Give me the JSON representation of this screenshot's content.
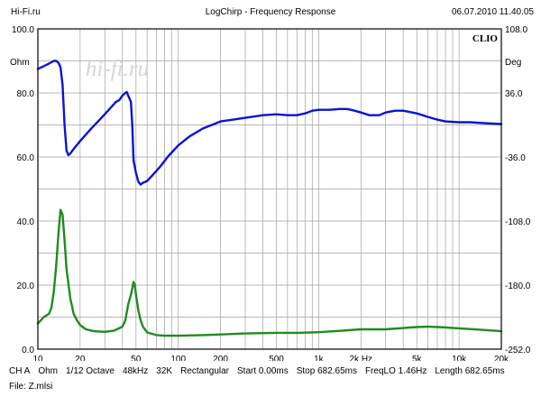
{
  "header": {
    "left": "Hi-Fi.ru",
    "title": "LogChirp - Frequency Response",
    "right": "06.07.2010 11.40.05"
  },
  "chart": {
    "brand": "CLIO",
    "watermark": "hi-fi.ru",
    "left_unit": "Ohm",
    "right_unit": "Deg"
  },
  "footer": {
    "channel": "CH A",
    "unit": "Ohm",
    "octave": "1/12 Octave",
    "rate": "48kHz",
    "size": "32K",
    "window": "Rectangular",
    "start": "Start 0.00ms",
    "stop": "Stop 682.65ms",
    "freqlo": "FreqLO 1.46Hz",
    "length": "Length 682.65ms",
    "file": "File: Z.mlsi"
  },
  "colors": {
    "impedance": "#0a14d2",
    "phase": "#1e8c1e",
    "grid": "#a0a0a0"
  },
  "chart_data": {
    "type": "line",
    "x_scale": "log",
    "xlim": [
      10,
      20000
    ],
    "ylim": [
      0,
      100
    ],
    "y2lim": [
      -252,
      108
    ],
    "x_ticks": [
      {
        "v": 10,
        "l": "10"
      },
      {
        "v": 20,
        "l": "20"
      },
      {
        "v": 50,
        "l": "50"
      },
      {
        "v": 100,
        "l": "100"
      },
      {
        "v": 200,
        "l": "200"
      },
      {
        "v": 500,
        "l": "500"
      },
      {
        "v": 1000,
        "l": "1k"
      },
      {
        "v": 2000,
        "l": "2k Hz"
      },
      {
        "v": 5000,
        "l": "5k"
      },
      {
        "v": 10000,
        "l": "10k"
      },
      {
        "v": 20000,
        "l": "20k"
      }
    ],
    "y_ticks": [
      {
        "v": 0,
        "l": "0.0"
      },
      {
        "v": 20,
        "l": "20.0"
      },
      {
        "v": 40,
        "l": "40.0"
      },
      {
        "v": 60,
        "l": "60.0"
      },
      {
        "v": 80,
        "l": "80.0"
      },
      {
        "v": 100,
        "l": "100.0"
      }
    ],
    "y2_ticks": [
      {
        "v": -252,
        "l": "-252.0"
      },
      {
        "v": -180,
        "l": "-180.0"
      },
      {
        "v": -108,
        "l": "-108.0"
      },
      {
        "v": -36,
        "l": "-36.0"
      },
      {
        "v": 36,
        "l": "36.0"
      },
      {
        "v": 108,
        "l": "108.0"
      }
    ],
    "grid": true,
    "series": [
      {
        "axis": "right",
        "color": "#0a14d2",
        "points": [
          [
            10,
            63
          ],
          [
            11,
            66
          ],
          [
            12,
            69
          ],
          [
            13,
            72
          ],
          [
            13.5,
            72
          ],
          [
            14,
            70
          ],
          [
            14.5,
            65
          ],
          [
            15,
            45
          ],
          [
            15.5,
            0
          ],
          [
            16,
            -29
          ],
          [
            16.5,
            -34
          ],
          [
            17,
            -32
          ],
          [
            18,
            -27
          ],
          [
            20,
            -18
          ],
          [
            24,
            -4
          ],
          [
            28,
            7
          ],
          [
            32,
            17
          ],
          [
            36,
            26
          ],
          [
            38,
            28
          ],
          [
            40,
            33
          ],
          [
            42,
            36
          ],
          [
            43,
            37
          ],
          [
            44,
            33
          ],
          [
            46,
            26
          ],
          [
            47,
            0
          ],
          [
            48,
            -40
          ],
          [
            50,
            -54
          ],
          [
            52,
            -64
          ],
          [
            54,
            -67
          ],
          [
            56,
            -65
          ],
          [
            60,
            -63
          ],
          [
            66,
            -56
          ],
          [
            75,
            -46
          ],
          [
            85,
            -35
          ],
          [
            100,
            -23
          ],
          [
            120,
            -13
          ],
          [
            150,
            -4
          ],
          [
            200,
            4
          ],
          [
            300,
            8
          ],
          [
            400,
            11
          ],
          [
            500,
            12
          ],
          [
            600,
            11
          ],
          [
            700,
            11
          ],
          [
            800,
            13
          ],
          [
            900,
            16
          ],
          [
            1000,
            17
          ],
          [
            1200,
            17
          ],
          [
            1400,
            18
          ],
          [
            1600,
            18
          ],
          [
            1800,
            16
          ],
          [
            2000,
            14
          ],
          [
            2300,
            11
          ],
          [
            2700,
            11
          ],
          [
            3000,
            14
          ],
          [
            3500,
            16
          ],
          [
            4000,
            16
          ],
          [
            5000,
            13
          ],
          [
            6000,
            9
          ],
          [
            7000,
            6
          ],
          [
            8000,
            4
          ],
          [
            10000,
            3
          ],
          [
            12000,
            3
          ],
          [
            15000,
            2
          ],
          [
            20000,
            1
          ]
        ]
      },
      {
        "axis": "left",
        "color": "#1e8c1e",
        "points": [
          [
            10,
            8
          ],
          [
            10.5,
            9
          ],
          [
            11,
            10
          ],
          [
            12,
            11
          ],
          [
            12.5,
            13
          ],
          [
            13,
            18
          ],
          [
            13.5,
            26
          ],
          [
            14,
            36
          ],
          [
            14.5,
            43.5
          ],
          [
            15,
            42
          ],
          [
            15.5,
            34
          ],
          [
            16,
            25
          ],
          [
            17,
            16
          ],
          [
            18,
            11
          ],
          [
            19,
            9
          ],
          [
            20,
            7.5
          ],
          [
            22,
            6.2
          ],
          [
            25,
            5.6
          ],
          [
            30,
            5.4
          ],
          [
            35,
            5.8
          ],
          [
            40,
            7
          ],
          [
            42,
            9
          ],
          [
            44,
            14
          ],
          [
            46,
            17
          ],
          [
            47,
            19
          ],
          [
            48,
            21
          ],
          [
            49,
            20
          ],
          [
            50,
            17
          ],
          [
            52,
            12
          ],
          [
            54,
            9
          ],
          [
            56,
            7
          ],
          [
            60,
            5.2
          ],
          [
            70,
            4.4
          ],
          [
            80,
            4.2
          ],
          [
            100,
            4.2
          ],
          [
            150,
            4.4
          ],
          [
            200,
            4.6
          ],
          [
            300,
            4.9
          ],
          [
            500,
            5.1
          ],
          [
            700,
            5.1
          ],
          [
            1000,
            5.3
          ],
          [
            1500,
            5.8
          ],
          [
            2000,
            6.2
          ],
          [
            3000,
            6.2
          ],
          [
            4000,
            6.6
          ],
          [
            5000,
            6.9
          ],
          [
            6000,
            7
          ],
          [
            7000,
            6.9
          ],
          [
            8000,
            6.8
          ],
          [
            10000,
            6.5
          ],
          [
            15000,
            6
          ],
          [
            20000,
            5.6
          ]
        ]
      }
    ]
  }
}
